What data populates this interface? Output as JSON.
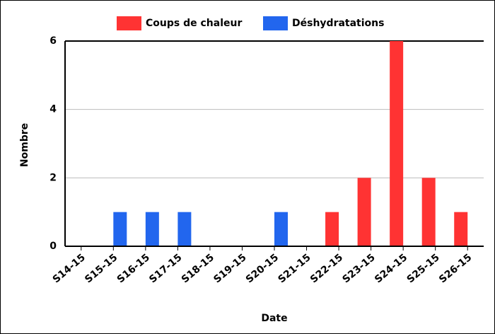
{
  "chart_data": {
    "type": "bar",
    "x_label": "Date",
    "y_label": "Nombre",
    "categories": [
      "S14-15",
      "S15-15",
      "S16-15",
      "S17-15",
      "S18-15",
      "S19-15",
      "S20-15",
      "S21-15",
      "S22-15",
      "S23-15",
      "S24-15",
      "S25-15",
      "S26-15"
    ],
    "series": [
      {
        "name": "Coups de chaleur",
        "color": "#ff3333",
        "values": [
          0,
          0,
          0,
          0,
          0,
          0,
          0,
          0,
          1,
          2,
          6,
          2,
          1
        ]
      },
      {
        "name": "Déshydratations",
        "color": "#2266ee",
        "values": [
          0,
          1,
          1,
          1,
          0,
          0,
          1,
          0,
          0,
          0,
          0,
          0,
          0
        ]
      }
    ],
    "ylim": [
      0,
      6
    ],
    "yticks": [
      0,
      2,
      4,
      6
    ],
    "grid": true,
    "legend": "top"
  }
}
